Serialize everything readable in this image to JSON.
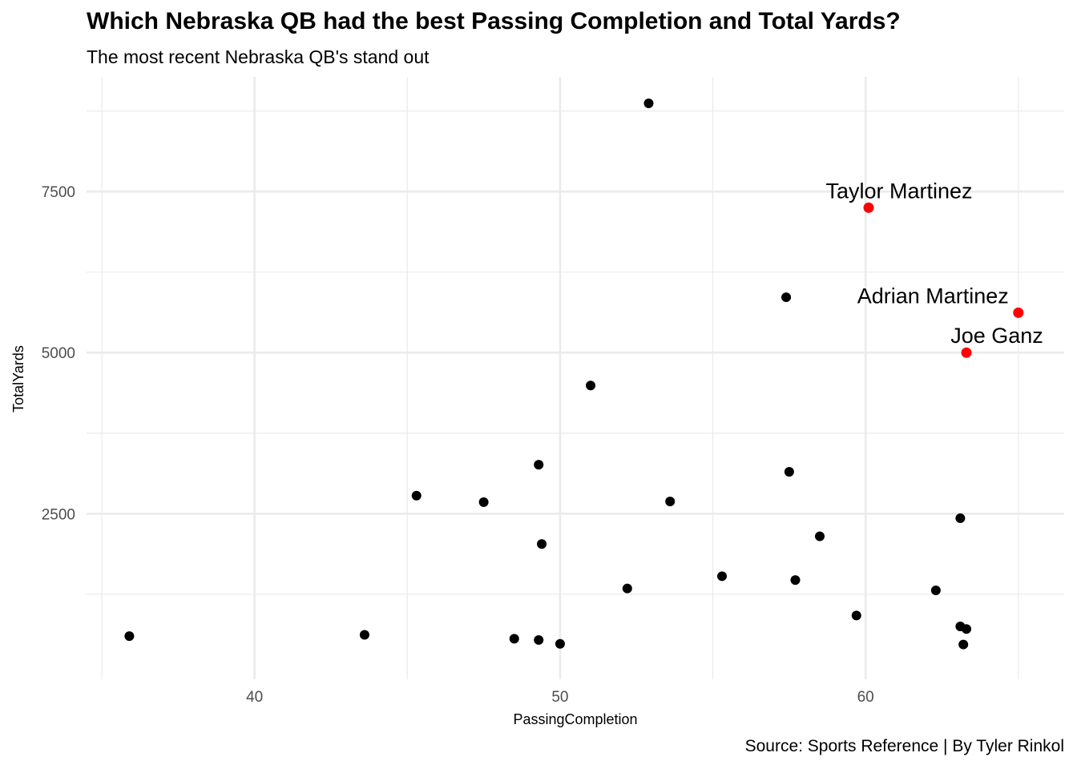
{
  "chart_data": {
    "type": "scatter",
    "title": "Which Nebraska QB had the best Passing Completion and Total Yards?",
    "subtitle": "The most recent Nebraska QB's stand out",
    "caption": "Source: Sports Reference | By Tyler Rinkol",
    "xlabel": "PassingCompletion",
    "ylabel": "TotalYards",
    "xlim": [
      34.5,
      66.5
    ],
    "ylim": [
      -70,
      9280
    ],
    "xticks": [
      40,
      50,
      60
    ],
    "yticks": [
      2500,
      5000,
      7500
    ],
    "grid": true,
    "legend": "none",
    "colors": {
      "default_point": "#000000",
      "highlight_point": "#ff0000",
      "gridline": "#ebebeb",
      "tick_label": "#4d4d4d"
    },
    "points": [
      {
        "x": 52.9,
        "y": 8870
      },
      {
        "x": 57.4,
        "y": 5860
      },
      {
        "x": 51.0,
        "y": 4490
      },
      {
        "x": 49.3,
        "y": 3260
      },
      {
        "x": 57.5,
        "y": 3150
      },
      {
        "x": 45.3,
        "y": 2780
      },
      {
        "x": 47.5,
        "y": 2680
      },
      {
        "x": 53.6,
        "y": 2690
      },
      {
        "x": 63.1,
        "y": 2430
      },
      {
        "x": 58.5,
        "y": 2150
      },
      {
        "x": 49.4,
        "y": 2030
      },
      {
        "x": 55.3,
        "y": 1530
      },
      {
        "x": 57.7,
        "y": 1470
      },
      {
        "x": 52.2,
        "y": 1340
      },
      {
        "x": 62.3,
        "y": 1310
      },
      {
        "x": 59.7,
        "y": 920
      },
      {
        "x": 63.1,
        "y": 750
      },
      {
        "x": 63.3,
        "y": 710
      },
      {
        "x": 35.9,
        "y": 600
      },
      {
        "x": 43.6,
        "y": 620
      },
      {
        "x": 48.5,
        "y": 560
      },
      {
        "x": 49.3,
        "y": 540
      },
      {
        "x": 50.0,
        "y": 480
      },
      {
        "x": 63.2,
        "y": 470
      }
    ],
    "highlighted": [
      {
        "label": "Taylor Martinez",
        "x": 60.1,
        "y": 7250,
        "label_anchor": "middle"
      },
      {
        "label": "Adrian Martinez",
        "x": 65.0,
        "y": 5620,
        "label_anchor": "end"
      },
      {
        "label": "Joe Ganz",
        "x": 63.3,
        "y": 5000,
        "label_anchor": "middle"
      }
    ]
  }
}
